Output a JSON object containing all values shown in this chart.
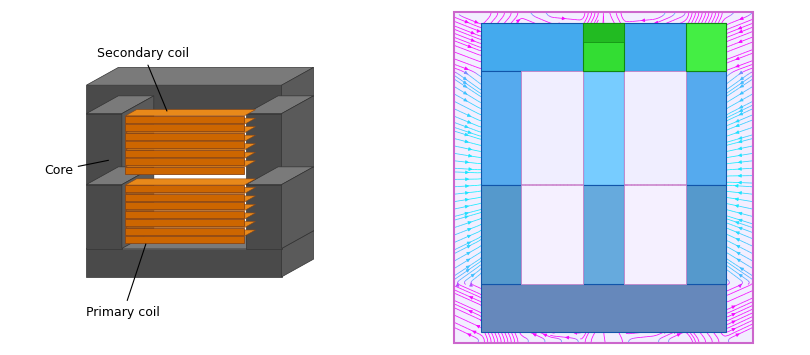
{
  "bg_color": "#ffffff",
  "core_dark": "#4a4a4a",
  "core_mid": "#5a5a5a",
  "core_light": "#7a7a7a",
  "coil_dark": "#8B4513",
  "coil_main": "#CD6600",
  "coil_highlight": "#E8891A",
  "labels": {
    "secondary": "Secondary coil",
    "core": "Core",
    "primary": "Primary coil"
  },
  "label_fontsize": 9,
  "figsize": [
    8.1,
    3.55
  ],
  "dpi": 100
}
